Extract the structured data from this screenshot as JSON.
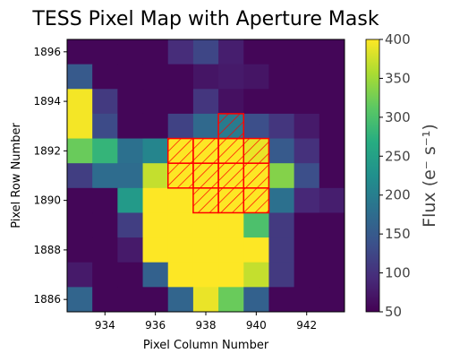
{
  "chart_data": {
    "type": "heatmap",
    "title": "TESS Pixel Map with Aperture Mask",
    "xlabel": "Pixel Column Number",
    "ylabel": "Pixel Row Number",
    "colorbar_label": "Flux (e⁻ s⁻¹)",
    "colormap": "viridis",
    "x_columns": [
      933,
      934,
      935,
      936,
      937,
      938,
      939,
      940,
      941,
      942,
      943
    ],
    "y_rows": [
      1886,
      1887,
      1888,
      1889,
      1890,
      1891,
      1892,
      1893,
      1894,
      1895,
      1896
    ],
    "xlim": [
      932.5,
      943.5
    ],
    "ylim": [
      1885.5,
      1896.5
    ],
    "xticks": [
      934,
      936,
      938,
      940,
      942
    ],
    "yticks": [
      1886,
      1888,
      1890,
      1892,
      1894,
      1896
    ],
    "clim": [
      50,
      400
    ],
    "cbar_ticks": [
      50,
      100,
      150,
      200,
      250,
      300,
      350,
      400
    ],
    "flux_rows_top_to_bottom": [
      [
        55,
        55,
        55,
        55,
        95,
        125,
        80,
        55,
        55,
        55,
        55
      ],
      [
        150,
        55,
        55,
        55,
        55,
        70,
        75,
        70,
        55,
        55,
        55
      ],
      [
        395,
        110,
        55,
        55,
        55,
        105,
        65,
        55,
        55,
        55,
        55
      ],
      [
        395,
        130,
        55,
        55,
        120,
        170,
        195,
        135,
        105,
        75,
        55
      ],
      [
        320,
        280,
        180,
        210,
        400,
        400,
        400,
        390,
        150,
        100,
        55
      ],
      [
        115,
        175,
        175,
        370,
        400,
        400,
        400,
        400,
        335,
        135,
        55
      ],
      [
        55,
        55,
        240,
        400,
        400,
        400,
        400,
        400,
        180,
        90,
        80
      ],
      [
        55,
        55,
        115,
        400,
        400,
        400,
        400,
        300,
        110,
        55,
        55
      ],
      [
        55,
        55,
        75,
        400,
        400,
        400,
        400,
        400,
        110,
        55,
        55
      ],
      [
        75,
        55,
        55,
        160,
        400,
        400,
        400,
        370,
        110,
        55,
        55
      ],
      [
        165,
        55,
        55,
        55,
        165,
        390,
        320,
        160,
        55,
        55,
        55
      ]
    ],
    "aperture_mask": [
      [
        939,
        1893
      ],
      [
        937,
        1892
      ],
      [
        938,
        1892
      ],
      [
        939,
        1892
      ],
      [
        940,
        1892
      ],
      [
        937,
        1891
      ],
      [
        938,
        1891
      ],
      [
        939,
        1891
      ],
      [
        940,
        1891
      ],
      [
        938,
        1890
      ],
      [
        939,
        1890
      ],
      [
        940,
        1890
      ]
    ],
    "mask_color": "#ff0000"
  }
}
